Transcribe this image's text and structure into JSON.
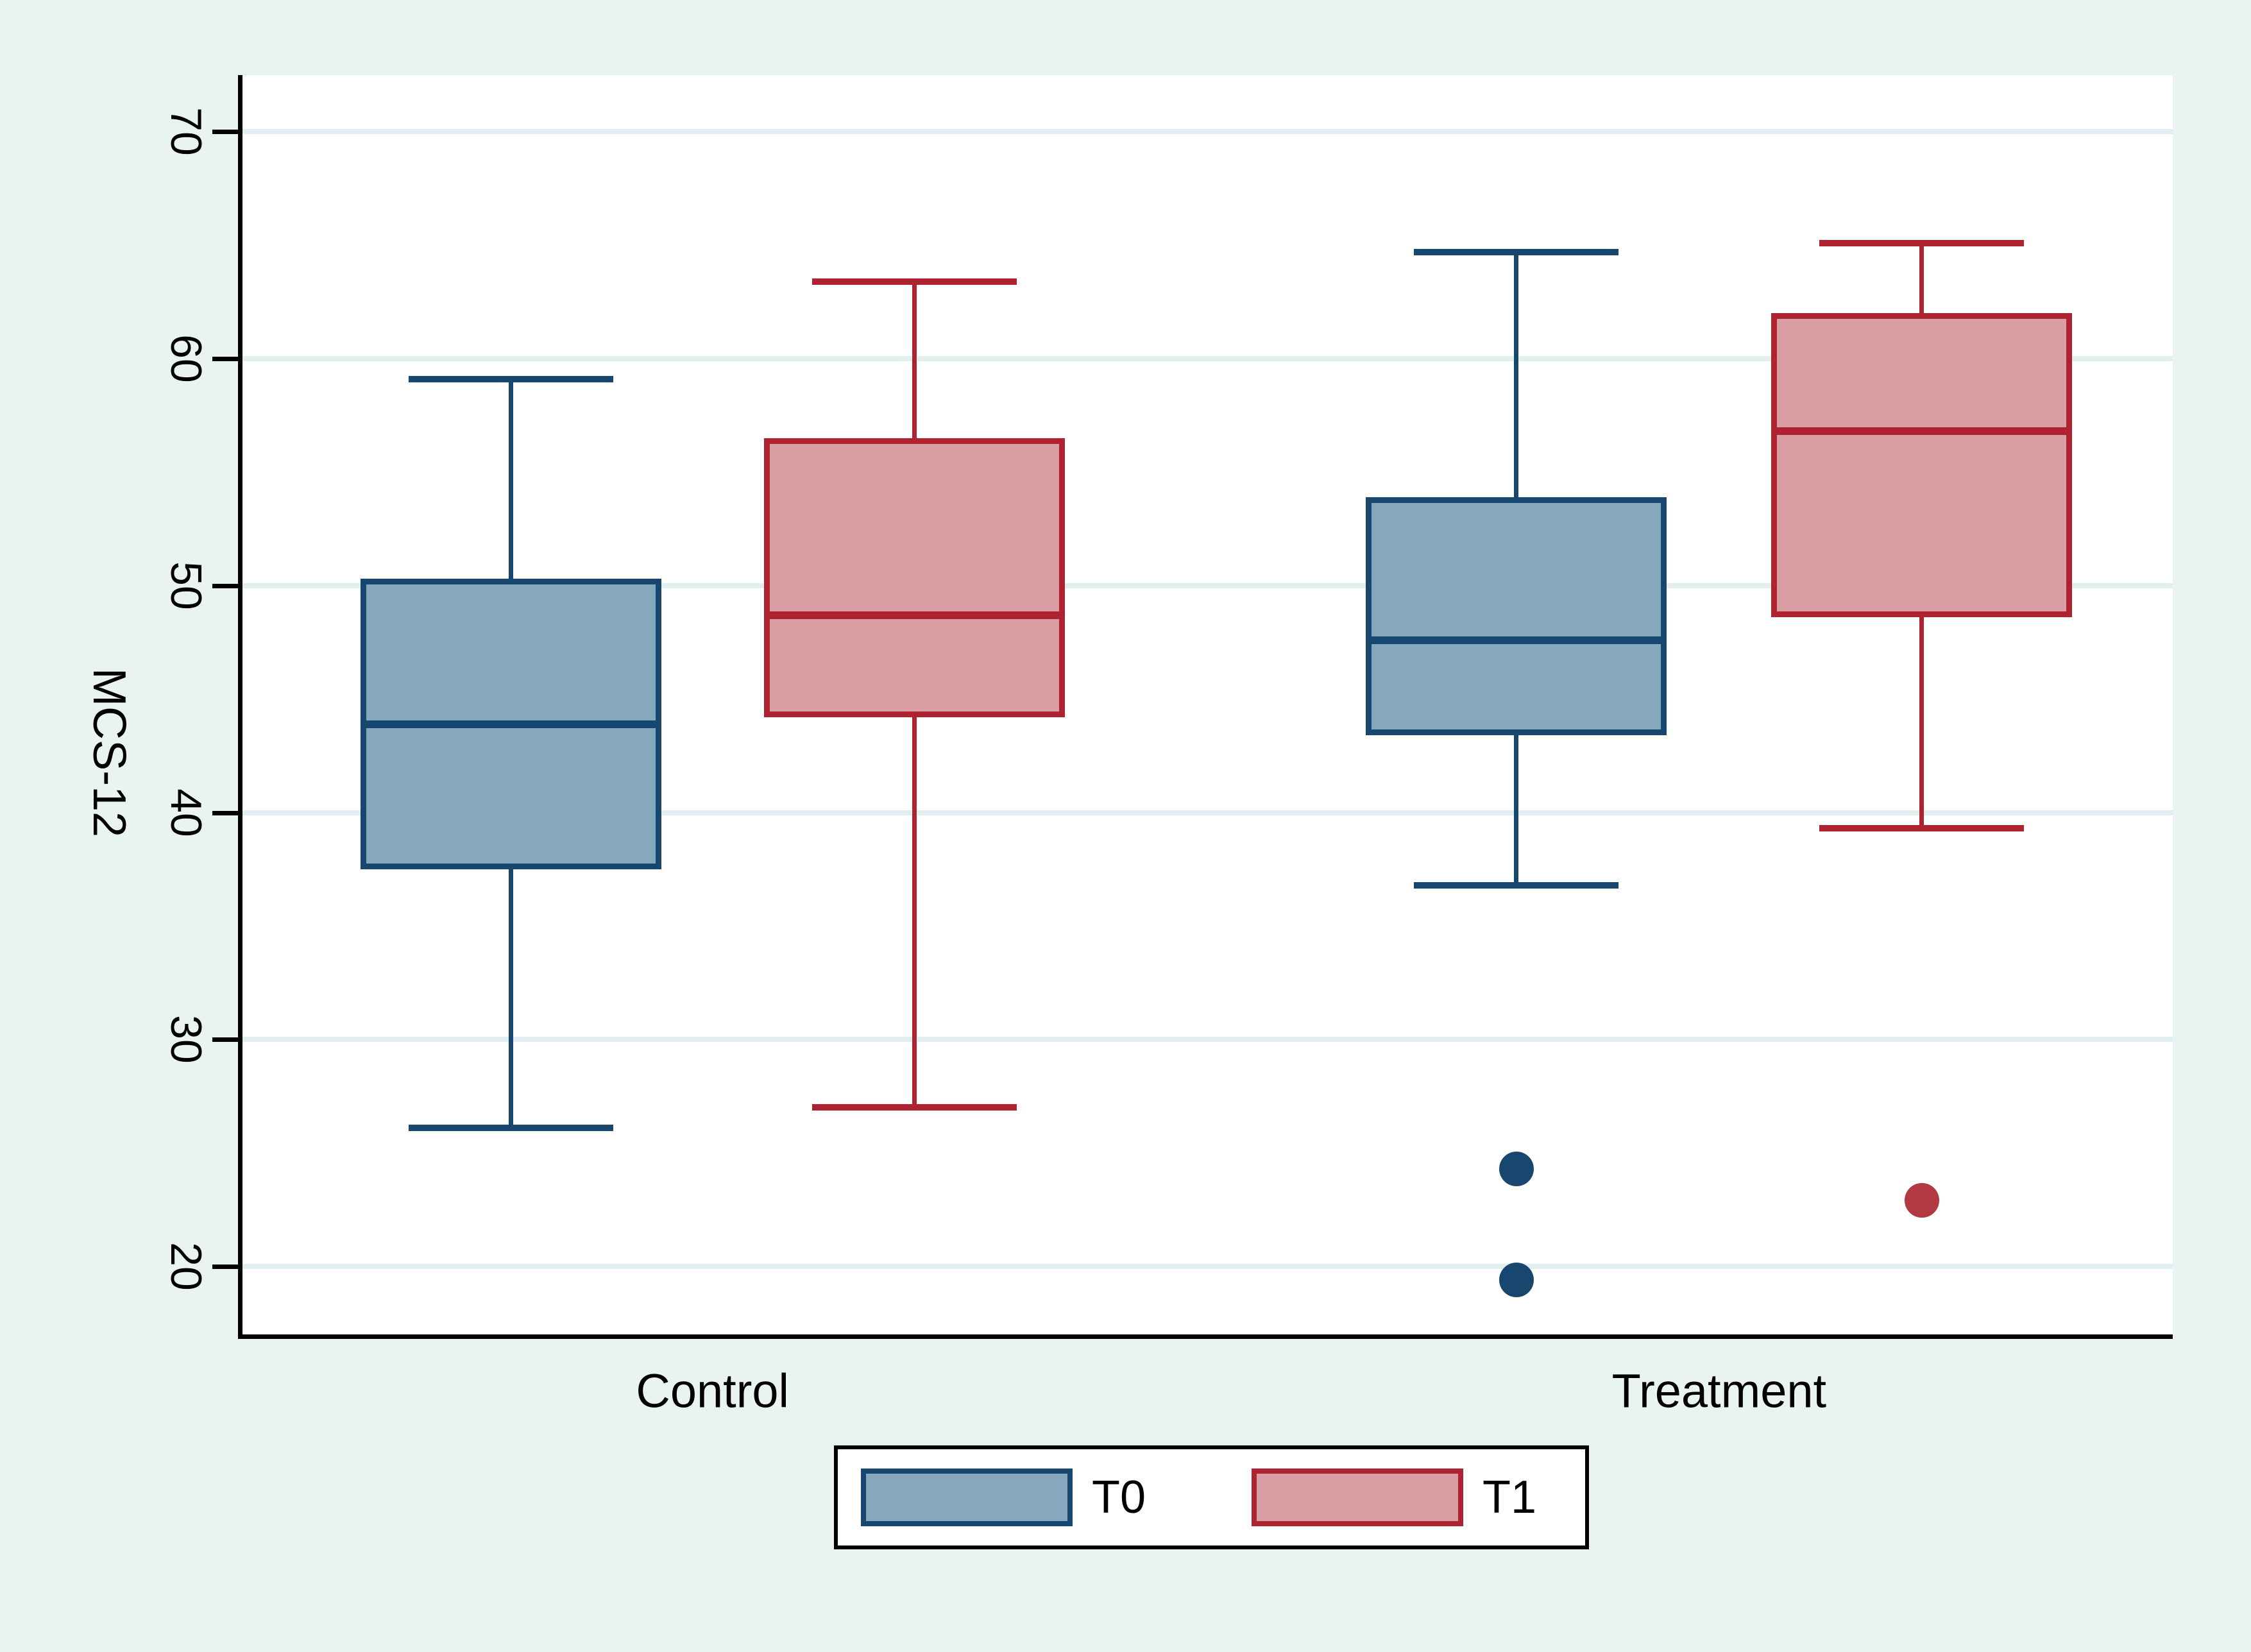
{
  "figure": {
    "background_color": "#e8f3f2",
    "plot_background_color": "#ffffff",
    "gridline_color": "#e2eff0",
    "axis_color": "#000000"
  },
  "chart_data": {
    "type": "boxplot",
    "title": "",
    "ylabel": "MCS-12",
    "xlabel": "",
    "y_ticks": [
      20,
      30,
      40,
      50,
      60,
      70
    ],
    "y_range": [
      17.0,
      72.5
    ],
    "grid": "horizontal",
    "groups": [
      "Control",
      "Treatment"
    ],
    "legend": {
      "position": "bottom-center",
      "entries": [
        "T0",
        "T1"
      ]
    },
    "series": [
      {
        "name": "T0",
        "fill": "#85a8be",
        "stroke": "#17466f",
        "marker": "#17466f"
      },
      {
        "name": "T1",
        "fill": "#d99da4",
        "stroke": "#ae232f",
        "marker": "#b23842"
      }
    ],
    "boxes": [
      {
        "group": "Control",
        "series": "T0",
        "whisker_low": 26.1,
        "q1": 37.5,
        "median": 43.9,
        "q3": 50.3,
        "whisker_high": 59.1,
        "outliers": []
      },
      {
        "group": "Control",
        "series": "T1",
        "whisker_low": 27.0,
        "q1": 44.2,
        "median": 48.7,
        "q3": 56.5,
        "whisker_high": 63.4,
        "outliers": []
      },
      {
        "group": "Treatment",
        "series": "T0",
        "whisker_low": 36.8,
        "q1": 43.4,
        "median": 47.6,
        "q3": 53.9,
        "whisker_high": 64.7,
        "outliers": [
          24.3,
          19.4
        ]
      },
      {
        "group": "Treatment",
        "series": "T1",
        "whisker_low": 39.3,
        "q1": 48.6,
        "median": 56.8,
        "q3": 62.0,
        "whisker_high": 65.1,
        "outliers": [
          22.9
        ]
      }
    ]
  }
}
